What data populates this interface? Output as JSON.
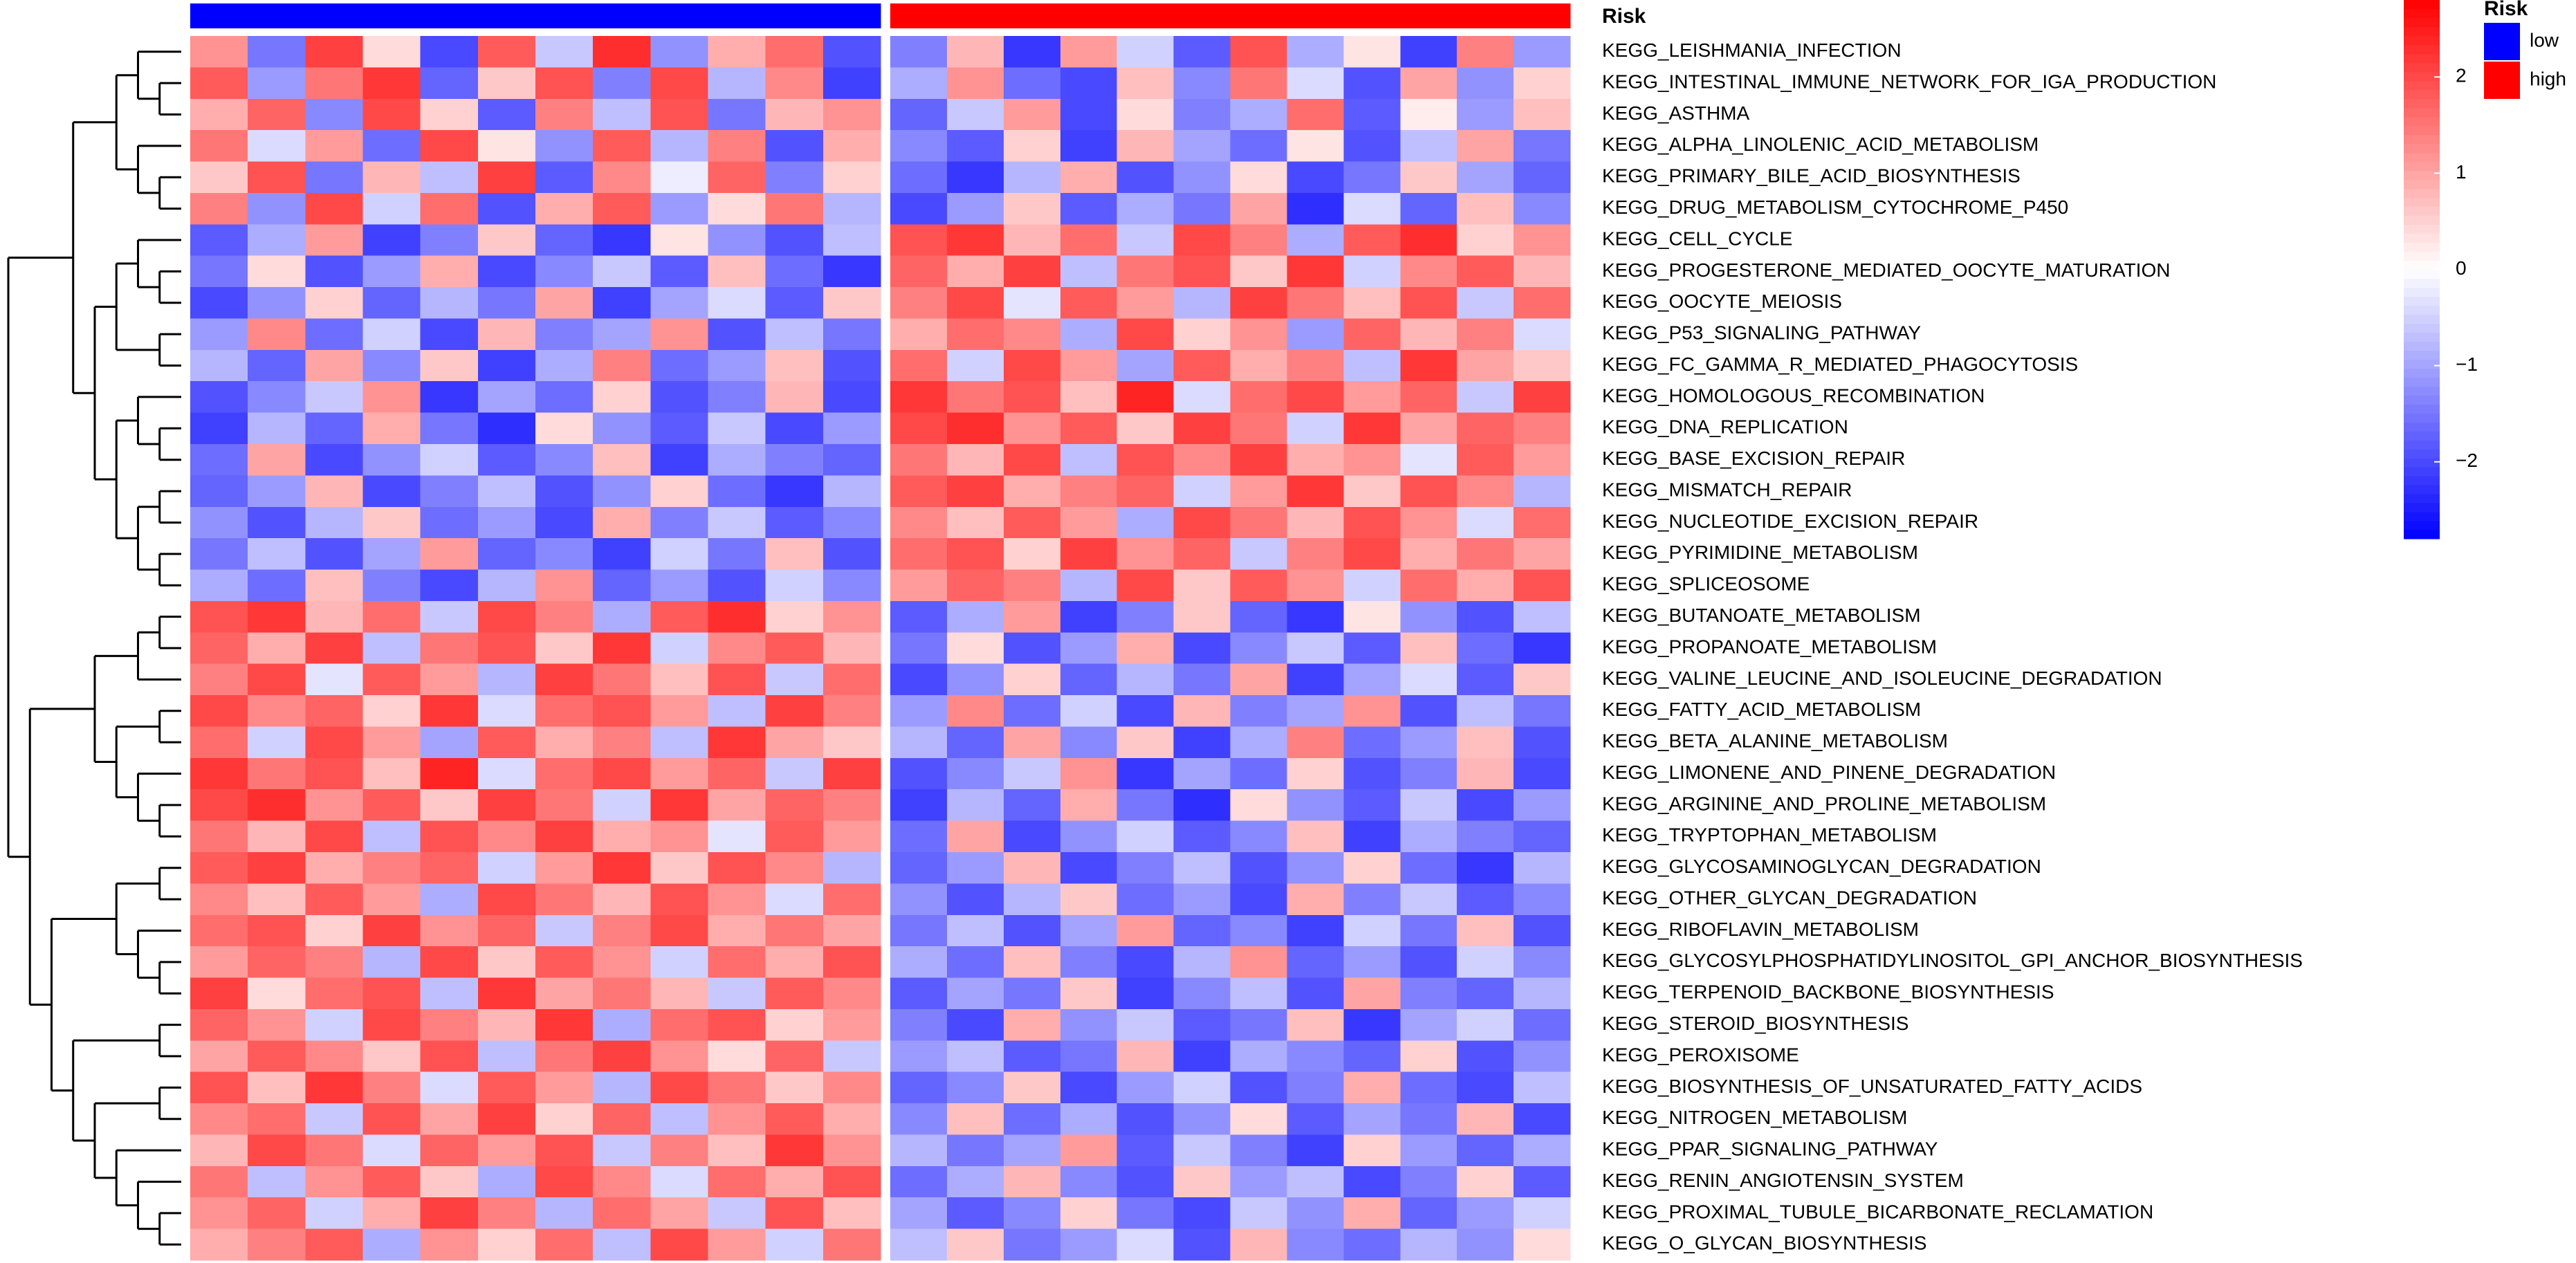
{
  "chart_data": {
    "type": "heatmap",
    "annotation_title": "Risk",
    "rows": [
      "KEGG_LEISHMANIA_INFECTION",
      "KEGG_INTESTINAL_IMMUNE_NETWORK_FOR_IGA_PRODUCTION",
      "KEGG_ASTHMA",
      "KEGG_ALPHA_LINOLENIC_ACID_METABOLISM",
      "KEGG_PRIMARY_BILE_ACID_BIOSYNTHESIS",
      "KEGG_DRUG_METABOLISM_CYTOCHROME_P450",
      "KEGG_CELL_CYCLE",
      "KEGG_PROGESTERONE_MEDIATED_OOCYTE_MATURATION",
      "KEGG_OOCYTE_MEIOSIS",
      "KEGG_P53_SIGNALING_PATHWAY",
      "KEGG_FC_GAMMA_R_MEDIATED_PHAGOCYTOSIS",
      "KEGG_HOMOLOGOUS_RECOMBINATION",
      "KEGG_DNA_REPLICATION",
      "KEGG_BASE_EXCISION_REPAIR",
      "KEGG_MISMATCH_REPAIR",
      "KEGG_NUCLEOTIDE_EXCISION_REPAIR",
      "KEGG_PYRIMIDINE_METABOLISM",
      "KEGG_SPLICEOSOME",
      "KEGG_BUTANOATE_METABOLISM",
      "KEGG_PROPANOATE_METABOLISM",
      "KEGG_VALINE_LEUCINE_AND_ISOLEUCINE_DEGRADATION",
      "KEGG_FATTY_ACID_METABOLISM",
      "KEGG_BETA_ALANINE_METABOLISM",
      "KEGG_LIMONENE_AND_PINENE_DEGRADATION",
      "KEGG_ARGININE_AND_PROLINE_METABOLISM",
      "KEGG_TRYPTOPHAN_METABOLISM",
      "KEGG_GLYCOSAMINOGLYCAN_DEGRADATION",
      "KEGG_OTHER_GLYCAN_DEGRADATION",
      "KEGG_RIBOFLAVIN_METABOLISM",
      "KEGG_GLYCOSYLPHOSPHATIDYLINOSITOL_GPI_ANCHOR_BIOSYNTHESIS",
      "KEGG_TERPENOID_BACKBONE_BIOSYNTHESIS",
      "KEGG_STEROID_BIOSYNTHESIS",
      "KEGG_PEROXISOME",
      "KEGG_BIOSYNTHESIS_OF_UNSATURATED_FATTY_ACIDS",
      "KEGG_NITROGEN_METABOLISM",
      "KEGG_PPAR_SIGNALING_PATHWAY",
      "KEGG_RENIN_ANGIOTENSIN_SYSTEM",
      "KEGG_PROXIMAL_TUBULE_BICARBONATE_RECLAMATION",
      "KEGG_O_GLYCAN_BIOSYNTHESIS"
    ],
    "column_groups": [
      "low",
      "low",
      "low",
      "low",
      "low",
      "low",
      "low",
      "low",
      "low",
      "low",
      "low",
      "low",
      "high",
      "high",
      "high",
      "high",
      "high",
      "high",
      "high",
      "high",
      "high",
      "high",
      "high",
      "high"
    ],
    "values": [
      [
        1.2,
        -1.5,
        2.1,
        0.4,
        -2.0,
        1.8,
        -0.6,
        2.3,
        -1.2,
        0.9,
        1.6,
        -1.9,
        -1.4,
        0.8,
        -2.2,
        1.1,
        -0.5,
        -1.8,
        1.9,
        -0.9,
        0.3,
        -2.1,
        1.4,
        -1.1
      ],
      [
        1.8,
        -1.1,
        1.5,
        2.2,
        -1.7,
        0.6,
        1.9,
        -1.4,
        2.0,
        -0.8,
        1.3,
        -2.1,
        -0.9,
        1.2,
        -1.6,
        -2.0,
        0.7,
        -1.3,
        1.5,
        -0.4,
        -1.9,
        1.0,
        -1.2,
        0.5
      ],
      [
        0.9,
        1.7,
        -1.3,
        2.0,
        0.5,
        -1.8,
        1.4,
        -0.7,
        1.9,
        -1.5,
        0.8,
        1.2,
        -1.7,
        -0.6,
        1.1,
        -2.0,
        0.4,
        -1.4,
        -0.9,
        1.6,
        -1.8,
        0.2,
        -1.1,
        0.7
      ],
      [
        1.5,
        -0.4,
        1.1,
        -1.6,
        2.0,
        0.3,
        -1.2,
        1.8,
        -0.8,
        1.4,
        -1.9,
        0.9,
        -1.3,
        -1.8,
        0.5,
        -2.1,
        0.8,
        -1.0,
        -1.6,
        0.3,
        -1.9,
        -0.7,
        1.0,
        -1.5
      ],
      [
        0.6,
        1.9,
        -1.5,
        0.8,
        -0.7,
        2.1,
        -1.8,
        1.3,
        -0.2,
        1.7,
        -1.4,
        0.5,
        -1.6,
        -2.2,
        -0.8,
        0.9,
        -1.9,
        -1.2,
        0.4,
        -2.0,
        -1.5,
        0.6,
        -1.0,
        -1.7
      ],
      [
        1.4,
        -1.2,
        2.0,
        -0.5,
        1.6,
        -1.9,
        0.9,
        1.8,
        -1.1,
        0.4,
        1.5,
        -0.8,
        -2.0,
        -1.1,
        0.6,
        -1.8,
        -0.9,
        -1.5,
        1.0,
        -2.3,
        -0.4,
        -1.7,
        0.7,
        -1.3
      ],
      [
        -1.8,
        -0.9,
        1.1,
        -2.1,
        -1.4,
        0.6,
        -1.7,
        -2.2,
        0.3,
        -1.2,
        -1.9,
        -0.7,
        1.9,
        2.2,
        0.8,
        1.6,
        -0.6,
        2.0,
        1.4,
        -0.9,
        1.8,
        2.3,
        0.5,
        1.2
      ],
      [
        -1.5,
        0.4,
        -1.9,
        -1.1,
        0.9,
        -2.0,
        -1.3,
        -0.6,
        -1.8,
        0.7,
        -1.6,
        -2.2,
        1.7,
        0.9,
        2.1,
        -0.7,
        1.5,
        1.9,
        0.6,
        2.2,
        -0.5,
        1.3,
        1.8,
        0.8
      ],
      [
        -2.0,
        -1.2,
        0.5,
        -1.7,
        -0.8,
        -1.5,
        1.0,
        -2.1,
        -1.0,
        -0.4,
        -1.8,
        0.6,
        1.4,
        2.0,
        -0.3,
        1.8,
        1.1,
        -0.8,
        2.1,
        1.5,
        0.7,
        1.9,
        -0.6,
        1.6
      ],
      [
        -1.1,
        1.3,
        -1.6,
        -0.5,
        -2.0,
        0.8,
        -1.4,
        -1.0,
        1.2,
        -1.9,
        -0.7,
        -1.5,
        0.9,
        1.6,
        1.3,
        -0.9,
        2.0,
        0.5,
        1.2,
        -1.1,
        1.7,
        0.8,
        1.4,
        -0.4
      ],
      [
        -0.8,
        -1.7,
        1.0,
        -1.3,
        0.6,
        -2.1,
        -0.9,
        1.4,
        -1.6,
        -1.1,
        0.7,
        -1.9,
        1.6,
        -0.5,
        2.0,
        1.1,
        -1.0,
        1.8,
        0.9,
        1.4,
        -0.7,
        2.2,
        1.0,
        0.6
      ],
      [
        -1.9,
        -1.3,
        -0.6,
        1.2,
        -2.2,
        -1.0,
        -1.6,
        0.5,
        -1.9,
        -1.4,
        0.8,
        -2.0,
        2.2,
        1.5,
        1.9,
        0.7,
        2.4,
        -0.4,
        1.6,
        2.0,
        1.1,
        1.7,
        -0.6,
        2.1
      ],
      [
        -2.1,
        -0.8,
        -1.7,
        0.9,
        -1.5,
        -2.3,
        0.4,
        -1.2,
        -1.8,
        -0.6,
        -2.0,
        -1.1,
        2.0,
        2.3,
        1.2,
        1.8,
        0.6,
        2.1,
        1.5,
        -0.5,
        2.2,
        1.0,
        1.7,
        1.4
      ],
      [
        -1.6,
        1.0,
        -2.0,
        -1.2,
        -0.5,
        -1.8,
        -1.3,
        0.7,
        -2.1,
        -0.9,
        -1.4,
        -1.7,
        1.5,
        0.8,
        2.0,
        -0.7,
        1.9,
        1.3,
        2.1,
        0.9,
        1.2,
        -0.3,
        1.8,
        1.1
      ],
      [
        -1.7,
        -1.1,
        0.8,
        -2.0,
        -1.4,
        -0.7,
        -1.9,
        -1.2,
        0.5,
        -1.6,
        -2.2,
        -0.8,
        1.8,
        2.1,
        0.9,
        1.4,
        1.7,
        -0.5,
        1.1,
        2.2,
        0.6,
        1.9,
        1.3,
        -0.8
      ],
      [
        -1.2,
        -1.9,
        -0.8,
        0.6,
        -1.6,
        -1.1,
        -2.0,
        0.9,
        -1.4,
        -0.6,
        -1.8,
        -1.3,
        1.3,
        0.7,
        1.8,
        1.1,
        -0.9,
        2.0,
        1.5,
        0.8,
        1.9,
        1.2,
        -0.4,
        1.6
      ],
      [
        -1.5,
        -0.7,
        -1.9,
        -1.0,
        1.1,
        -1.7,
        -1.3,
        -2.1,
        -0.5,
        -1.5,
        0.7,
        -1.9,
        1.6,
        1.9,
        0.5,
        2.1,
        1.2,
        1.7,
        -0.6,
        1.4,
        2.0,
        0.9,
        1.5,
        1.0
      ],
      [
        -0.9,
        -1.6,
        0.7,
        -1.4,
        -2.0,
        -0.8,
        1.2,
        -1.7,
        -1.1,
        -1.9,
        -0.5,
        -1.3,
        1.1,
        1.7,
        1.4,
        -0.8,
        2.0,
        0.6,
        1.8,
        1.2,
        -0.5,
        1.6,
        0.9,
        1.9
      ],
      [
        1.9,
        2.2,
        0.8,
        1.6,
        -0.6,
        2.0,
        1.4,
        -0.9,
        1.8,
        2.3,
        0.5,
        1.2,
        -1.8,
        -0.9,
        1.1,
        -2.1,
        -1.4,
        0.6,
        -1.7,
        -2.2,
        0.3,
        -1.2,
        -1.9,
        -0.7
      ],
      [
        1.7,
        0.9,
        2.1,
        -0.7,
        1.5,
        1.9,
        0.6,
        2.2,
        -0.5,
        1.3,
        1.8,
        0.8,
        -1.5,
        0.4,
        -1.9,
        -1.1,
        0.9,
        -2.0,
        -1.3,
        -0.6,
        -1.8,
        0.7,
        -1.6,
        -2.2
      ],
      [
        1.4,
        2.0,
        -0.3,
        1.8,
        1.1,
        -0.8,
        2.1,
        1.5,
        0.7,
        1.9,
        -0.6,
        1.6,
        -2.0,
        -1.2,
        0.5,
        -1.7,
        -0.8,
        -1.5,
        1.0,
        -2.1,
        -1.0,
        -0.4,
        -1.8,
        0.6
      ],
      [
        2.0,
        1.3,
        1.7,
        0.5,
        2.2,
        -0.4,
        1.6,
        1.9,
        1.1,
        -0.7,
        2.1,
        1.4,
        -1.1,
        1.3,
        -1.6,
        -0.5,
        -2.0,
        0.8,
        -1.4,
        -1.0,
        1.2,
        -1.9,
        -0.7,
        -1.5
      ],
      [
        1.6,
        -0.5,
        2.0,
        1.1,
        -1.0,
        1.8,
        0.9,
        1.4,
        -0.7,
        2.2,
        1.0,
        0.6,
        -0.8,
        -1.7,
        1.0,
        -1.3,
        0.6,
        -2.1,
        -0.9,
        1.4,
        -1.6,
        -1.1,
        0.7,
        -1.9
      ],
      [
        2.2,
        1.5,
        1.9,
        0.7,
        2.4,
        -0.4,
        1.6,
        2.0,
        1.1,
        1.7,
        -0.6,
        2.1,
        -1.9,
        -1.3,
        -0.6,
        1.2,
        -2.2,
        -1.0,
        -1.6,
        0.5,
        -1.9,
        -1.4,
        0.8,
        -2.0
      ],
      [
        2.0,
        2.3,
        1.2,
        1.8,
        0.6,
        2.1,
        1.5,
        -0.5,
        2.2,
        1.0,
        1.7,
        1.4,
        -2.1,
        -0.8,
        -1.7,
        0.9,
        -1.5,
        -2.3,
        0.4,
        -1.2,
        -1.8,
        -0.6,
        -2.0,
        -1.1
      ],
      [
        1.5,
        0.8,
        2.0,
        -0.7,
        1.9,
        1.3,
        2.1,
        0.9,
        1.2,
        -0.3,
        1.8,
        1.1,
        -1.6,
        1.0,
        -2.0,
        -1.2,
        -0.5,
        -1.8,
        -1.3,
        0.7,
        -2.1,
        -0.9,
        -1.4,
        -1.7
      ],
      [
        1.8,
        2.1,
        0.9,
        1.4,
        1.7,
        -0.5,
        1.1,
        2.2,
        0.6,
        1.9,
        1.3,
        -0.8,
        -1.7,
        -1.1,
        0.8,
        -2.0,
        -1.4,
        -0.7,
        -1.9,
        -1.2,
        0.5,
        -1.6,
        -2.2,
        -0.8
      ],
      [
        1.3,
        0.7,
        1.8,
        1.1,
        -0.9,
        2.0,
        1.5,
        0.8,
        1.9,
        1.2,
        -0.4,
        1.6,
        -1.2,
        -1.9,
        -0.8,
        0.6,
        -1.6,
        -1.1,
        -2.0,
        0.9,
        -1.4,
        -0.6,
        -1.8,
        -1.3
      ],
      [
        1.6,
        1.9,
        0.5,
        2.1,
        1.2,
        1.7,
        -0.6,
        1.4,
        2.0,
        0.9,
        1.5,
        1.0,
        -1.5,
        -0.7,
        -1.9,
        -1.0,
        1.1,
        -1.7,
        -1.3,
        -2.1,
        -0.5,
        -1.5,
        0.7,
        -1.9
      ],
      [
        1.1,
        1.7,
        1.4,
        -0.8,
        2.0,
        0.6,
        1.8,
        1.2,
        -0.5,
        1.6,
        0.9,
        1.9,
        -0.9,
        -1.6,
        0.7,
        -1.4,
        -2.0,
        -0.8,
        1.2,
        -1.7,
        -1.1,
        -1.9,
        -0.5,
        -1.3
      ],
      [
        2.1,
        0.4,
        1.6,
        1.9,
        -0.7,
        2.2,
        1.0,
        1.5,
        0.8,
        -0.6,
        1.8,
        1.3,
        -1.8,
        -1.0,
        -1.5,
        0.6,
        -2.1,
        -1.3,
        -0.7,
        -1.9,
        1.0,
        -1.4,
        -1.7,
        -0.8
      ],
      [
        1.7,
        1.2,
        -0.5,
        2.0,
        1.4,
        0.8,
        2.2,
        -0.9,
        1.6,
        1.9,
        0.5,
        1.1,
        -1.4,
        -2.0,
        0.9,
        -1.2,
        -0.6,
        -1.8,
        -1.5,
        0.7,
        -2.2,
        -1.0,
        -0.5,
        -1.6
      ],
      [
        1.0,
        1.8,
        1.3,
        0.6,
        1.9,
        -0.7,
        1.5,
        2.1,
        1.2,
        0.4,
        1.7,
        -0.6,
        -1.1,
        -0.7,
        -1.8,
        -1.5,
        0.8,
        -2.1,
        -0.9,
        -1.3,
        -1.7,
        0.5,
        -1.9,
        -1.2
      ],
      [
        1.9,
        0.7,
        2.2,
        1.4,
        -0.4,
        1.8,
        1.1,
        -0.8,
        2.0,
        1.5,
        0.6,
        1.3,
        -1.7,
        -1.3,
        0.6,
        -2.0,
        -1.1,
        -0.5,
        -1.9,
        -1.4,
        0.9,
        -1.6,
        -2.0,
        -0.7
      ],
      [
        1.3,
        1.6,
        -0.6,
        1.9,
        1.0,
        2.1,
        0.5,
        1.7,
        -0.7,
        1.2,
        1.8,
        0.9,
        -1.3,
        0.7,
        -1.6,
        -0.9,
        -1.9,
        -1.2,
        0.4,
        -1.8,
        -1.0,
        -1.5,
        0.8,
        -2.0
      ],
      [
        0.8,
        2.0,
        1.5,
        -0.4,
        1.7,
        1.1,
        1.9,
        -0.6,
        1.4,
        0.7,
        2.2,
        1.2,
        -0.8,
        -1.5,
        -1.0,
        1.1,
        -1.8,
        -0.6,
        -1.4,
        -2.1,
        0.5,
        -1.1,
        -1.7,
        -0.9
      ],
      [
        1.5,
        -0.7,
        1.2,
        1.8,
        0.6,
        -0.9,
        2.0,
        1.3,
        -0.4,
        1.6,
        0.9,
        1.9,
        -1.6,
        -0.9,
        0.8,
        -1.3,
        -1.9,
        0.6,
        -1.1,
        -0.7,
        -2.0,
        -1.4,
        0.5,
        -1.8
      ],
      [
        1.2,
        1.7,
        -0.5,
        0.9,
        2.1,
        1.4,
        -0.8,
        1.6,
        1.0,
        -0.6,
        1.9,
        0.7,
        -1.0,
        -1.8,
        -1.3,
        0.5,
        -1.5,
        -2.0,
        -0.6,
        -1.2,
        0.9,
        -1.7,
        -1.1,
        -0.5
      ],
      [
        0.9,
        1.4,
        1.8,
        -0.9,
        1.2,
        0.5,
        1.6,
        -0.7,
        2.0,
        1.1,
        -0.5,
        1.5,
        -0.7,
        0.6,
        -1.5,
        -1.1,
        -0.4,
        -1.9,
        0.8,
        -1.3,
        -1.6,
        -0.8,
        -1.2,
        0.4
      ]
    ],
    "legend": {
      "title": "Risk",
      "labels": [
        "low",
        "high"
      ],
      "colors": [
        "#0000ff",
        "#ff0000"
      ]
    },
    "colorbar": {
      "colors": [
        "#0000ff",
        "#ffffff",
        "#ff0000"
      ],
      "zlim": [
        -2.8,
        2.8
      ],
      "ticks": [
        {
          "value": -2,
          "label": "−2"
        },
        {
          "value": -1,
          "label": "−1"
        },
        0,
        1,
        2
      ]
    }
  }
}
